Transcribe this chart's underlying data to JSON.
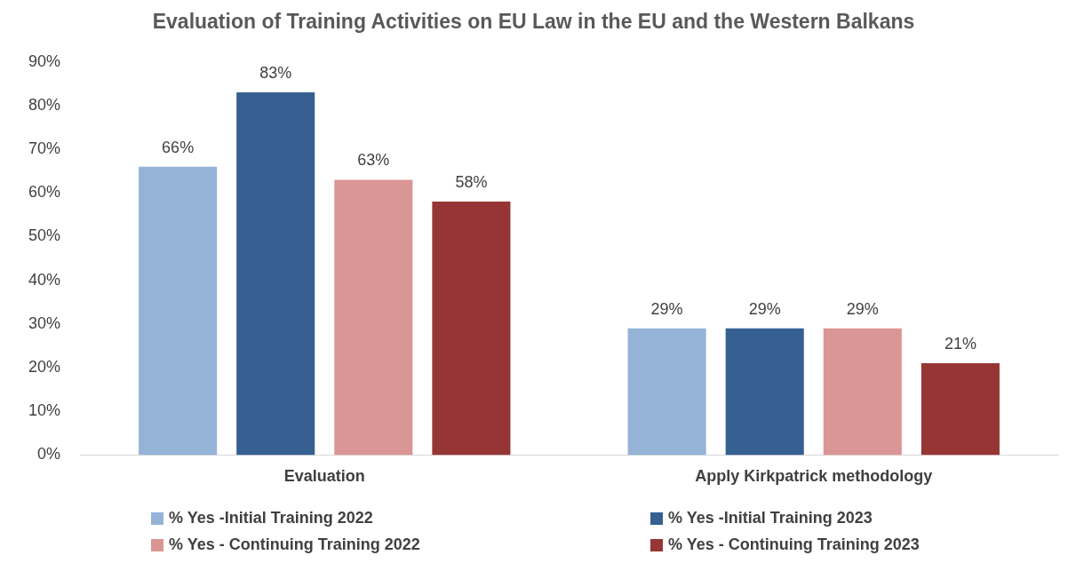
{
  "chart_data": {
    "type": "bar",
    "title": "Evaluation of Training Activities on EU Law in the EU and the Western Balkans",
    "categories": [
      "Evaluation",
      "Apply Kirkpatrick methodology"
    ],
    "series": [
      {
        "name": "% Yes -Initial Training 2022",
        "color": "#95b3d7",
        "values": [
          66,
          29
        ],
        "value_labels": [
          "66%",
          "29%"
        ]
      },
      {
        "name": "% Yes -Initial Training 2023",
        "color": "#366092",
        "values": [
          83,
          29
        ],
        "value_labels": [
          "83%",
          "29%"
        ]
      },
      {
        "name": "% Yes - Continuing Training 2022",
        "color": "#da9694",
        "values": [
          63,
          29
        ],
        "value_labels": [
          "63%",
          "29%"
        ]
      },
      {
        "name": "% Yes - Continuing Training 2023",
        "color": "#963634",
        "values": [
          58,
          21
        ],
        "value_labels": [
          "58%",
          "21%"
        ]
      }
    ],
    "ylim": [
      0,
      90
    ],
    "yticks": [
      {
        "value": 0,
        "label": "0%"
      },
      {
        "value": 10,
        "label": "10%"
      },
      {
        "value": 20,
        "label": "20%"
      },
      {
        "value": 30,
        "label": "30%"
      },
      {
        "value": 40,
        "label": "40%"
      },
      {
        "value": 50,
        "label": "50%"
      },
      {
        "value": 60,
        "label": "60%"
      },
      {
        "value": 70,
        "label": "70%"
      },
      {
        "value": 80,
        "label": "80%"
      },
      {
        "value": 90,
        "label": "90%"
      }
    ],
    "grid": false,
    "legend": "bottom"
  }
}
